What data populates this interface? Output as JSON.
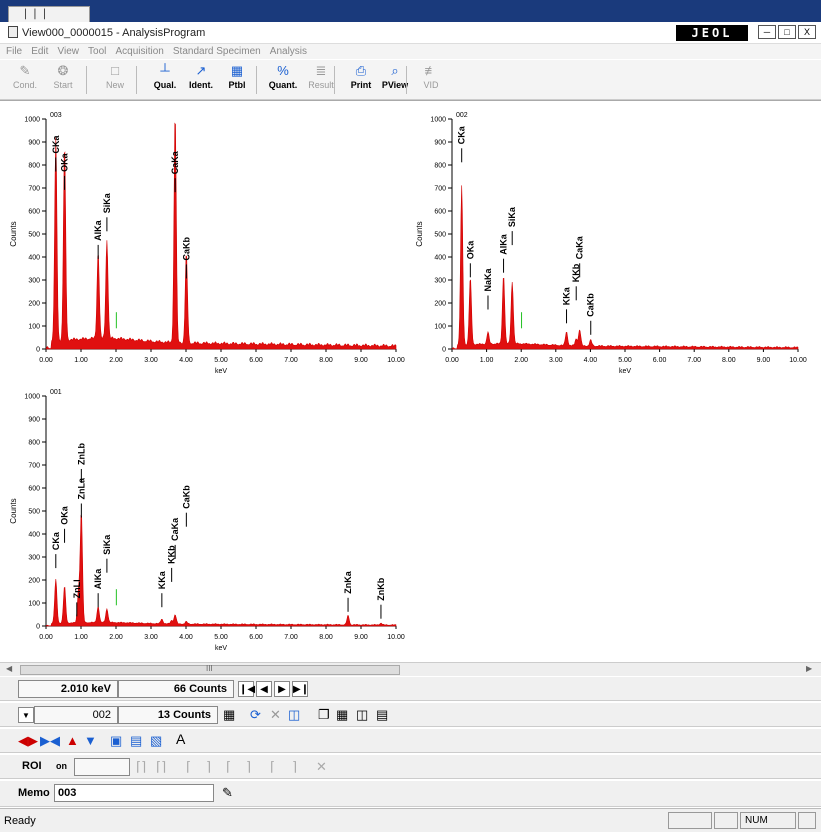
{
  "window": {
    "title": "View000_0000015 - AnalysisProgram",
    "brand": "JEOL",
    "controls": [
      "─",
      "□",
      "X"
    ]
  },
  "menu": [
    "File",
    "Edit",
    "View",
    "Tool",
    "Acquisition",
    "Standard Specimen",
    "Analysis"
  ],
  "toolbar": [
    {
      "label": "Cond.",
      "enabled": false,
      "icon": "cond-icon",
      "glyph": "✎"
    },
    {
      "label": "Start",
      "enabled": false,
      "icon": "start-icon",
      "glyph": "❂"
    },
    {
      "label": "New",
      "enabled": false,
      "icon": "new-icon",
      "glyph": "□"
    },
    {
      "label": "Qual.",
      "enabled": true,
      "icon": "qual-icon",
      "glyph": "┴"
    },
    {
      "label": "Ident.",
      "enabled": true,
      "icon": "ident-icon",
      "glyph": "↗"
    },
    {
      "label": "Ptbl",
      "enabled": true,
      "icon": "ptbl-icon",
      "glyph": "▦"
    },
    {
      "label": "Quant.",
      "enabled": true,
      "icon": "quant-icon",
      "glyph": "%"
    },
    {
      "label": "Result",
      "enabled": false,
      "icon": "result-icon",
      "glyph": "≣"
    },
    {
      "label": "Print",
      "enabled": true,
      "icon": "print-icon",
      "glyph": "⎙"
    },
    {
      "label": "PView",
      "enabled": true,
      "icon": "pview-icon",
      "glyph": "⌕"
    },
    {
      "label": "VID",
      "enabled": false,
      "icon": "vid-icon",
      "glyph": "≢"
    }
  ],
  "chart_data": [
    {
      "type": "line",
      "id": "003",
      "xlabel": "keV",
      "ylabel": "Counts",
      "xlim": [
        0,
        10
      ],
      "ylim": [
        0,
        1000
      ],
      "xticks": [
        "0.00",
        "1.00",
        "2.00",
        "3.00",
        "4.00",
        "5.00",
        "6.00",
        "7.00",
        "8.00",
        "9.00",
        "10.00"
      ],
      "yticks": [
        "0",
        "100",
        "200",
        "300",
        "400",
        "500",
        "600",
        "700",
        "800",
        "900",
        "1000"
      ],
      "background": 30,
      "peaks": [
        [
          0.28,
          880
        ],
        [
          0.53,
          850
        ],
        [
          1.49,
          380
        ],
        [
          1.74,
          430
        ],
        [
          3.69,
          1000
        ],
        [
          4.01,
          390
        ]
      ],
      "labels": [
        {
          "text": "CKa",
          "x": 0.28,
          "y": 850
        },
        {
          "text": "OKa",
          "x": 0.53,
          "y": 770
        },
        {
          "text": "AlKa",
          "x": 1.49,
          "y": 470
        },
        {
          "text": "SiKa",
          "x": 1.74,
          "y": 590
        },
        {
          "text": "CaKa",
          "x": 3.69,
          "y": 760
        },
        {
          "text": "CaKb",
          "x": 4.01,
          "y": 385
        }
      ],
      "cursor_keV": 2.01
    },
    {
      "type": "line",
      "id": "002",
      "xlabel": "keV",
      "ylabel": "Counts",
      "xlim": [
        0,
        10
      ],
      "ylim": [
        0,
        1000
      ],
      "xticks": [
        "0.00",
        "1.00",
        "2.00",
        "3.00",
        "4.00",
        "5.00",
        "6.00",
        "7.00",
        "8.00",
        "9.00",
        "10.00"
      ],
      "yticks": [
        "0",
        "100",
        "200",
        "300",
        "400",
        "500",
        "600",
        "700",
        "800",
        "900",
        "1000"
      ],
      "background": 15,
      "peaks": [
        [
          0.28,
          690
        ],
        [
          0.53,
          290
        ],
        [
          1.04,
          50
        ],
        [
          1.49,
          300
        ],
        [
          1.74,
          270
        ],
        [
          3.31,
          60
        ],
        [
          3.59,
          30
        ],
        [
          3.69,
          70
        ],
        [
          4.01,
          25
        ]
      ],
      "labels": [
        {
          "text": "CKa",
          "x": 0.28,
          "y": 890
        },
        {
          "text": "OKa",
          "x": 0.53,
          "y": 390
        },
        {
          "text": "NaKa",
          "x": 1.04,
          "y": 250
        },
        {
          "text": "AlKa",
          "x": 1.49,
          "y": 410
        },
        {
          "text": "SiKa",
          "x": 1.74,
          "y": 530
        },
        {
          "text": "KKa",
          "x": 3.31,
          "y": 190
        },
        {
          "text": "KKb",
          "x": 3.59,
          "y": 290
        },
        {
          "text": "CaKa",
          "x": 3.69,
          "y": 390
        },
        {
          "text": "CaKb",
          "x": 4.01,
          "y": 140
        }
      ],
      "cursor_keV": 2.01
    },
    {
      "type": "line",
      "id": "001",
      "xlabel": "keV",
      "ylabel": "Counts",
      "xlim": [
        0,
        10
      ],
      "ylim": [
        0,
        1000
      ],
      "xticks": [
        "0.00",
        "1.00",
        "2.00",
        "3.00",
        "4.00",
        "5.00",
        "6.00",
        "7.00",
        "8.00",
        "9.00",
        "10.00"
      ],
      "yticks": [
        "0",
        "100",
        "200",
        "300",
        "400",
        "500",
        "600",
        "700",
        "800",
        "900",
        "1000"
      ],
      "background": 10,
      "peaks": [
        [
          0.28,
          190
        ],
        [
          0.53,
          160
        ],
        [
          0.93,
          140
        ],
        [
          1.01,
          480
        ],
        [
          1.49,
          70
        ],
        [
          1.74,
          60
        ],
        [
          3.31,
          20
        ],
        [
          3.59,
          15
        ],
        [
          3.69,
          40
        ],
        [
          4.01,
          10
        ],
        [
          8.63,
          40
        ],
        [
          9.57,
          8
        ]
      ],
      "labels": [
        {
          "text": "CKa",
          "x": 0.28,
          "y": 330
        },
        {
          "text": "OKa",
          "x": 0.53,
          "y": 440
        },
        {
          "text": "ZnLl",
          "x": 0.88,
          "y": 120
        },
        {
          "text": "ZnLa",
          "x": 1.01,
          "y": 550
        },
        {
          "text": "ZnLb",
          "x": 1.01,
          "y": 700
        },
        {
          "text": "AlKa",
          "x": 1.49,
          "y": 160
        },
        {
          "text": "SiKa",
          "x": 1.74,
          "y": 310
        },
        {
          "text": "KKa",
          "x": 3.31,
          "y": 160
        },
        {
          "text": "KKb",
          "x": 3.59,
          "y": 270
        },
        {
          "text": "CaKa",
          "x": 3.69,
          "y": 370
        },
        {
          "text": "CaKb",
          "x": 4.01,
          "y": 510
        },
        {
          "text": "ZnKa",
          "x": 8.63,
          "y": 140
        },
        {
          "text": "ZnKb",
          "x": 9.57,
          "y": 110
        }
      ],
      "cursor_keV": 2.01
    }
  ],
  "scroll_label": "III",
  "controls": {
    "energy": "2.010 keV",
    "counts": "66 Counts",
    "nav": [
      "❙◀",
      "◀",
      "▶",
      "▶❙"
    ],
    "spectrum_select": "002",
    "counts2": "13 Counts",
    "row2_icons": [
      "grid-icon",
      "refresh-icon",
      "delete-icon",
      "tile-icon",
      "window-icon",
      "layout-icon",
      "columns-icon",
      "rows-icon"
    ],
    "row3_text": "A",
    "roi_label": "ROI",
    "roi_toggle": "on",
    "memo_label": "Memo",
    "memo_value": "003"
  },
  "status": {
    "text": "Ready",
    "num": "NUM"
  }
}
